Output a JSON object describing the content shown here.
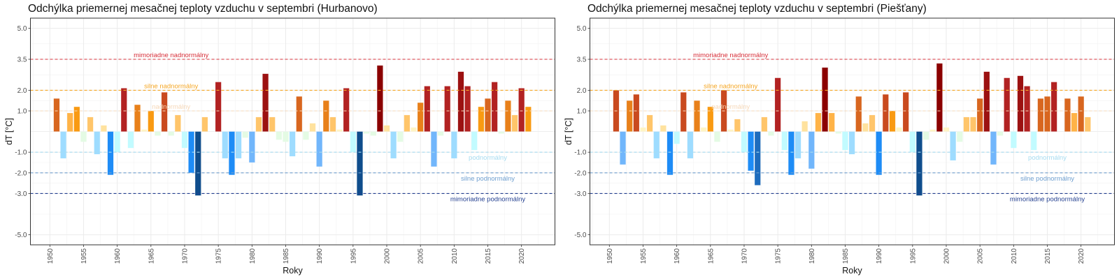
{
  "chart_data": [
    {
      "type": "bar",
      "title": "Odchýlka priemernej mesačnej teploty vzduchu v septembri (Hurbanovo)",
      "xlabel": "Roky",
      "ylabel": "dT [°C]",
      "ylim": [
        -5.5,
        5.5
      ],
      "xlim": [
        1948,
        2024
      ],
      "grid": true,
      "y_ticks": [
        5.0,
        3.5,
        2.0,
        1.0,
        -1.0,
        -2.0,
        -3.0,
        -5.0
      ],
      "y_tick_labels": [
        "5.0",
        "3.5",
        "2.0",
        "1.0",
        "-1.0",
        "-2.0",
        "-3.0",
        "-5.0"
      ],
      "x_ticks": [
        1950,
        1955,
        1960,
        1965,
        1970,
        1975,
        1980,
        1985,
        1990,
        1995,
        2000,
        2005,
        2010,
        2015,
        2020
      ],
      "thresholds": [
        {
          "value": 3.5,
          "label": "mimoriadne nadnormálny",
          "color": "#d7303a",
          "label_year": 1968,
          "label_side": "above"
        },
        {
          "value": 2.0,
          "label": "silne nadnormálny",
          "color": "#f5a623",
          "label_year": 1968,
          "label_side": "above"
        },
        {
          "value": 1.0,
          "label": "nadnormálny",
          "color": "#f6d8b8",
          "label_year": 1968,
          "label_side": "above"
        },
        {
          "value": -1.0,
          "label": "podnormálny",
          "color": "#a7dcf0",
          "label_year": 2015,
          "label_side": "below"
        },
        {
          "value": -2.0,
          "label": "silne podnormálny",
          "color": "#6f9fcf",
          "label_year": 2015,
          "label_side": "below"
        },
        {
          "value": -3.0,
          "label": "mimoriadne podnormálny",
          "color": "#233f8f",
          "label_year": 2015,
          "label_side": "below"
        }
      ],
      "x": [
        1951,
        1952,
        1953,
        1954,
        1955,
        1956,
        1957,
        1958,
        1959,
        1960,
        1961,
        1962,
        1963,
        1964,
        1965,
        1966,
        1967,
        1968,
        1969,
        1970,
        1971,
        1972,
        1973,
        1974,
        1975,
        1976,
        1977,
        1978,
        1979,
        1980,
        1981,
        1982,
        1983,
        1984,
        1985,
        1986,
        1987,
        1988,
        1989,
        1990,
        1991,
        1992,
        1993,
        1994,
        1995,
        1996,
        1997,
        1998,
        1999,
        2000,
        2001,
        2002,
        2003,
        2004,
        2005,
        2006,
        2007,
        2008,
        2009,
        2010,
        2011,
        2012,
        2013,
        2014,
        2015,
        2016,
        2017,
        2018,
        2019,
        2020,
        2021
      ],
      "values": [
        1.6,
        -1.3,
        0.9,
        1.2,
        -0.5,
        0.7,
        -1.1,
        0.3,
        -2.1,
        -1.0,
        2.1,
        -0.8,
        1.3,
        0.1,
        1.0,
        -0.2,
        1.9,
        -0.2,
        0.8,
        -0.8,
        -2.0,
        -3.1,
        0.7,
        0.0,
        2.4,
        -1.3,
        -2.1,
        -1.3,
        -0.3,
        -1.5,
        0.7,
        2.8,
        0.7,
        -0.4,
        -0.5,
        -1.2,
        1.7,
        -0.4,
        0.4,
        -1.7,
        1.5,
        0.7,
        0.1,
        2.1,
        -1.0,
        -3.1,
        -0.1,
        -0.2,
        3.2,
        0.3,
        -1.3,
        -0.5,
        0.8,
        0.2,
        1.4,
        2.2,
        -1.7,
        -0.2,
        2.2,
        -1.3,
        2.9,
        2.2,
        -0.9,
        1.2,
        1.6,
        2.4,
        -0.1,
        1.5,
        0.8,
        2.1,
        1.2
      ]
    },
    {
      "type": "bar",
      "title": "Odchýlka priemernej mesačnej teploty vzduchu v septembri (Piešťany)",
      "xlabel": "Roky",
      "ylabel": "dT [°C]",
      "ylim": [
        -5.5,
        5.5
      ],
      "xlim": [
        1948,
        2024
      ],
      "grid": true,
      "y_ticks": [
        5.0,
        3.5,
        2.0,
        1.0,
        -1.0,
        -2.0,
        -3.0,
        -5.0
      ],
      "y_tick_labels": [
        "5.0",
        "3.5",
        "2.0",
        "1.0",
        "-1.0",
        "-2.0",
        "-3.0",
        "-5.0"
      ],
      "x_ticks": [
        1950,
        1955,
        1960,
        1965,
        1970,
        1975,
        1980,
        1985,
        1990,
        1995,
        2000,
        2005,
        2010,
        2015,
        2020
      ],
      "thresholds": [
        {
          "value": 3.5,
          "label": "mimoriadne nadnormálny",
          "color": "#d7303a",
          "label_year": 1968,
          "label_side": "above"
        },
        {
          "value": 2.0,
          "label": "silne nadnormálny",
          "color": "#f5a623",
          "label_year": 1968,
          "label_side": "above"
        },
        {
          "value": 1.0,
          "label": "nadnormálny",
          "color": "#f6d8b8",
          "label_year": 1968,
          "label_side": "above"
        },
        {
          "value": -1.0,
          "label": "podnormálny",
          "color": "#a7dcf0",
          "label_year": 2015,
          "label_side": "below"
        },
        {
          "value": -2.0,
          "label": "silne podnormálny",
          "color": "#6f9fcf",
          "label_year": 2015,
          "label_side": "below"
        },
        {
          "value": -3.0,
          "label": "mimoriadne podnormálny",
          "color": "#233f8f",
          "label_year": 2015,
          "label_side": "below"
        }
      ],
      "x": [
        1951,
        1952,
        1953,
        1954,
        1955,
        1956,
        1957,
        1958,
        1959,
        1960,
        1961,
        1962,
        1963,
        1964,
        1965,
        1966,
        1967,
        1968,
        1969,
        1970,
        1971,
        1972,
        1973,
        1974,
        1975,
        1976,
        1977,
        1978,
        1979,
        1980,
        1981,
        1982,
        1983,
        1984,
        1985,
        1986,
        1987,
        1988,
        1989,
        1990,
        1991,
        1992,
        1993,
        1994,
        1995,
        1996,
        1997,
        1998,
        1999,
        2000,
        2001,
        2002,
        2003,
        2004,
        2005,
        2006,
        2007,
        2008,
        2009,
        2010,
        2011,
        2012,
        2013,
        2014,
        2015,
        2016,
        2017,
        2018,
        2019,
        2020,
        2021
      ],
      "values": [
        2.0,
        -1.6,
        1.5,
        1.8,
        0.2,
        0.8,
        -1.3,
        0.3,
        -2.1,
        -0.6,
        1.9,
        -1.3,
        1.5,
        0.2,
        1.2,
        -0.5,
        2.0,
        0.1,
        0.6,
        -1.0,
        -1.9,
        -2.6,
        0.7,
        -0.2,
        2.6,
        -0.9,
        -2.1,
        -1.3,
        0.5,
        -1.8,
        0.9,
        3.1,
        0.9,
        -0.1,
        -0.9,
        -1.1,
        1.7,
        0.4,
        0.8,
        -2.1,
        1.8,
        1.0,
        0.2,
        1.9,
        -1.0,
        -3.1,
        -0.4,
        0.1,
        3.3,
        0.2,
        -1.4,
        -0.5,
        0.7,
        0.7,
        1.6,
        2.9,
        -1.6,
        -0.2,
        2.6,
        -0.8,
        2.7,
        2.2,
        -0.9,
        1.6,
        1.7,
        2.4,
        0.0,
        1.6,
        0.9,
        1.7,
        0.7
      ]
    }
  ],
  "color_scale": [
    {
      "min": 3.0,
      "color": "#8b0000"
    },
    {
      "min": 2.7,
      "color": "#9c1111"
    },
    {
      "min": 2.1,
      "color": "#b22222"
    },
    {
      "min": 1.8,
      "color": "#c94a1f"
    },
    {
      "min": 1.55,
      "color": "#d8661f"
    },
    {
      "min": 1.3,
      "color": "#e8801a"
    },
    {
      "min": 1.0,
      "color": "#f99a12"
    },
    {
      "min": 0.85,
      "color": "#ffb347"
    },
    {
      "min": 0.6,
      "color": "#ffc56a"
    },
    {
      "min": 0.25,
      "color": "#ffe29e"
    },
    {
      "min": 0.05,
      "color": "#fff4c4"
    },
    {
      "min": -0.55,
      "color": "#e4fbe4"
    },
    {
      "min": -1.05,
      "color": "#c2fbff"
    },
    {
      "min": -1.45,
      "color": "#9edcff"
    },
    {
      "min": -1.85,
      "color": "#71b6fb"
    },
    {
      "min": -2.3,
      "color": "#1e8cf6"
    },
    {
      "min": -2.9,
      "color": "#1e6cbd"
    },
    {
      "min": -99,
      "color": "#0f4d8c"
    }
  ]
}
